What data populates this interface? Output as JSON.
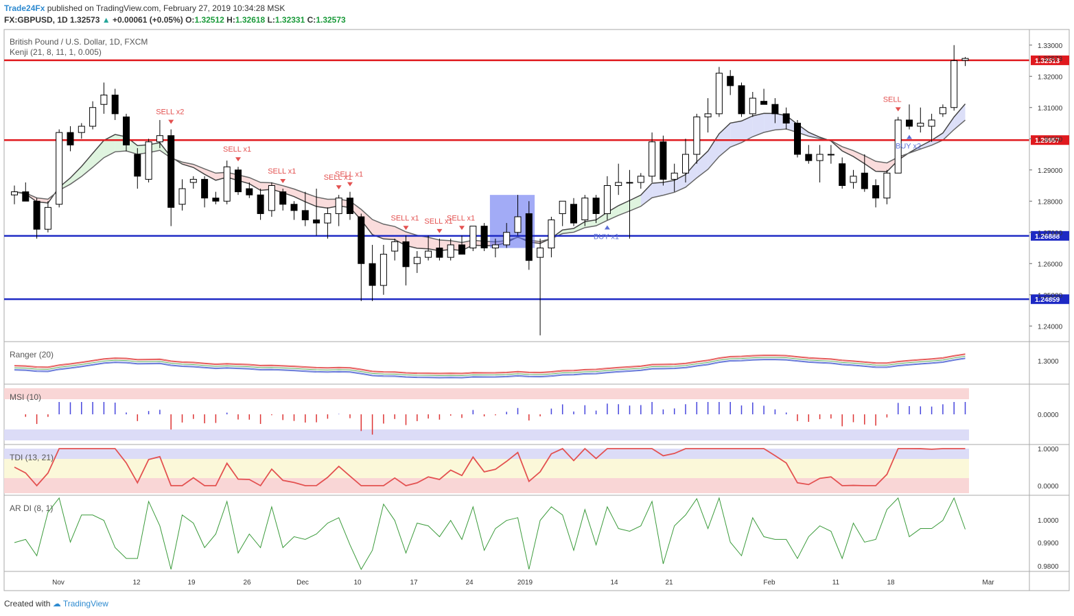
{
  "header": {
    "brand": "Trade24Fx",
    "published": "published on TradingView.com, February 27, 2019 10:34:28 MSK",
    "symbol": "FX:GBPUSD, 1D",
    "last": "1.32573",
    "change": "+0.00061 (+0.05%)",
    "open_label": "O:",
    "open": "1.32512",
    "high_label": "H:",
    "high": "1.32618",
    "low_label": "L:",
    "low": "1.32331",
    "close_label": "C:",
    "close": "1.32573"
  },
  "footer": {
    "created": "Created with",
    "brand": "TradingView"
  },
  "colors": {
    "up": "#ffffff",
    "down": "#000000",
    "resistance": "#e0191e",
    "support": "#1d29c4",
    "sell": "#e35150",
    "buy": "#5c6fd6"
  },
  "chart_data": {
    "type": "candlestick",
    "title": "British Pound / U.S. Dollar, 1D, FXCM",
    "indicator": "Kenji (21, 8, 11, 1, 0.005)",
    "x_ticks": [
      "Nov",
      "12",
      "19",
      "26",
      "Dec",
      "10",
      "17",
      "24",
      "2019",
      "14",
      "21",
      "Feb",
      "11",
      "18",
      "Mar"
    ],
    "y_ticks": [
      "1.33000",
      "1.32000",
      "1.31000",
      "1.30000",
      "1.29000",
      "1.28000",
      "1.27000",
      "1.26000",
      "1.25000",
      "1.24000"
    ],
    "ylim": [
      1.235,
      1.335
    ],
    "last_price_label": "1.32573",
    "ohlc": [
      {
        "o": 1.282,
        "h": 1.285,
        "l": 1.279,
        "c": 1.283
      },
      {
        "o": 1.283,
        "h": 1.286,
        "l": 1.281,
        "c": 1.28
      },
      {
        "o": 1.28,
        "h": 1.281,
        "l": 1.268,
        "c": 1.271
      },
      {
        "o": 1.271,
        "h": 1.28,
        "l": 1.27,
        "c": 1.278
      },
      {
        "o": 1.279,
        "h": 1.303,
        "l": 1.278,
        "c": 1.302
      },
      {
        "o": 1.302,
        "h": 1.304,
        "l": 1.296,
        "c": 1.298
      },
      {
        "o": 1.302,
        "h": 1.305,
        "l": 1.3,
        "c": 1.304
      },
      {
        "o": 1.304,
        "h": 1.312,
        "l": 1.303,
        "c": 1.31
      },
      {
        "o": 1.311,
        "h": 1.318,
        "l": 1.308,
        "c": 1.314
      },
      {
        "o": 1.314,
        "h": 1.316,
        "l": 1.306,
        "c": 1.308
      },
      {
        "o": 1.307,
        "h": 1.308,
        "l": 1.296,
        "c": 1.298
      },
      {
        "o": 1.295,
        "h": 1.297,
        "l": 1.284,
        "c": 1.288
      },
      {
        "o": 1.287,
        "h": 1.3,
        "l": 1.286,
        "c": 1.299
      },
      {
        "o": 1.299,
        "h": 1.306,
        "l": 1.297,
        "c": 1.301
      },
      {
        "o": 1.301,
        "h": 1.303,
        "l": 1.272,
        "c": 1.278
      },
      {
        "o": 1.279,
        "h": 1.287,
        "l": 1.277,
        "c": 1.284
      },
      {
        "o": 1.286,
        "h": 1.288,
        "l": 1.284,
        "c": 1.287
      },
      {
        "o": 1.287,
        "h": 1.288,
        "l": 1.278,
        "c": 1.281
      },
      {
        "o": 1.281,
        "h": 1.283,
        "l": 1.279,
        "c": 1.28
      },
      {
        "o": 1.28,
        "h": 1.293,
        "l": 1.279,
        "c": 1.291
      },
      {
        "o": 1.29,
        "h": 1.291,
        "l": 1.282,
        "c": 1.283
      },
      {
        "o": 1.284,
        "h": 1.286,
        "l": 1.281,
        "c": 1.282
      },
      {
        "o": 1.282,
        "h": 1.284,
        "l": 1.274,
        "c": 1.276
      },
      {
        "o": 1.277,
        "h": 1.286,
        "l": 1.275,
        "c": 1.285
      },
      {
        "o": 1.283,
        "h": 1.284,
        "l": 1.277,
        "c": 1.279
      },
      {
        "o": 1.279,
        "h": 1.28,
        "l": 1.274,
        "c": 1.277
      },
      {
        "o": 1.277,
        "h": 1.283,
        "l": 1.272,
        "c": 1.274
      },
      {
        "o": 1.274,
        "h": 1.284,
        "l": 1.269,
        "c": 1.273
      },
      {
        "o": 1.273,
        "h": 1.278,
        "l": 1.268,
        "c": 1.276
      },
      {
        "o": 1.276,
        "h": 1.282,
        "l": 1.272,
        "c": 1.281
      },
      {
        "o": 1.281,
        "h": 1.283,
        "l": 1.274,
        "c": 1.276
      },
      {
        "o": 1.275,
        "h": 1.276,
        "l": 1.248,
        "c": 1.26
      },
      {
        "o": 1.26,
        "h": 1.266,
        "l": 1.248,
        "c": 1.253
      },
      {
        "o": 1.253,
        "h": 1.266,
        "l": 1.25,
        "c": 1.263
      },
      {
        "o": 1.264,
        "h": 1.268,
        "l": 1.261,
        "c": 1.267
      },
      {
        "o": 1.267,
        "h": 1.269,
        "l": 1.253,
        "c": 1.259
      },
      {
        "o": 1.26,
        "h": 1.264,
        "l": 1.257,
        "c": 1.262
      },
      {
        "o": 1.262,
        "h": 1.269,
        "l": 1.261,
        "c": 1.264
      },
      {
        "o": 1.265,
        "h": 1.268,
        "l": 1.261,
        "c": 1.262
      },
      {
        "o": 1.262,
        "h": 1.268,
        "l": 1.261,
        "c": 1.266
      },
      {
        "o": 1.266,
        "h": 1.269,
        "l": 1.263,
        "c": 1.263
      },
      {
        "o": 1.265,
        "h": 1.272,
        "l": 1.264,
        "c": 1.272
      },
      {
        "o": 1.272,
        "h": 1.273,
        "l": 1.264,
        "c": 1.265
      },
      {
        "o": 1.265,
        "h": 1.268,
        "l": 1.262,
        "c": 1.266
      },
      {
        "o": 1.266,
        "h": 1.273,
        "l": 1.265,
        "c": 1.27
      },
      {
        "o": 1.27,
        "h": 1.282,
        "l": 1.269,
        "c": 1.275
      },
      {
        "o": 1.276,
        "h": 1.28,
        "l": 1.258,
        "c": 1.261
      },
      {
        "o": 1.262,
        "h": 1.268,
        "l": 1.237,
        "c": 1.265
      },
      {
        "o": 1.265,
        "h": 1.275,
        "l": 1.262,
        "c": 1.274
      },
      {
        "o": 1.276,
        "h": 1.28,
        "l": 1.272,
        "c": 1.28
      },
      {
        "o": 1.279,
        "h": 1.281,
        "l": 1.272,
        "c": 1.273
      },
      {
        "o": 1.274,
        "h": 1.282,
        "l": 1.272,
        "c": 1.281
      },
      {
        "o": 1.281,
        "h": 1.282,
        "l": 1.273,
        "c": 1.276
      },
      {
        "o": 1.276,
        "h": 1.288,
        "l": 1.274,
        "c": 1.285
      },
      {
        "o": 1.285,
        "h": 1.292,
        "l": 1.282,
        "c": 1.286
      },
      {
        "o": 1.286,
        "h": 1.29,
        "l": 1.268,
        "c": 1.286
      },
      {
        "o": 1.286,
        "h": 1.289,
        "l": 1.284,
        "c": 1.288
      },
      {
        "o": 1.288,
        "h": 1.302,
        "l": 1.286,
        "c": 1.299
      },
      {
        "o": 1.299,
        "h": 1.301,
        "l": 1.285,
        "c": 1.287
      },
      {
        "o": 1.287,
        "h": 1.292,
        "l": 1.283,
        "c": 1.289
      },
      {
        "o": 1.289,
        "h": 1.3,
        "l": 1.286,
        "c": 1.295
      },
      {
        "o": 1.295,
        "h": 1.308,
        "l": 1.292,
        "c": 1.307
      },
      {
        "o": 1.307,
        "h": 1.313,
        "l": 1.302,
        "c": 1.308
      },
      {
        "o": 1.308,
        "h": 1.323,
        "l": 1.307,
        "c": 1.321
      },
      {
        "o": 1.32,
        "h": 1.322,
        "l": 1.314,
        "c": 1.317
      },
      {
        "o": 1.317,
        "h": 1.318,
        "l": 1.307,
        "c": 1.308
      },
      {
        "o": 1.308,
        "h": 1.315,
        "l": 1.307,
        "c": 1.313
      },
      {
        "o": 1.312,
        "h": 1.316,
        "l": 1.311,
        "c": 1.311
      },
      {
        "o": 1.311,
        "h": 1.313,
        "l": 1.305,
        "c": 1.308
      },
      {
        "o": 1.308,
        "h": 1.31,
        "l": 1.303,
        "c": 1.305
      },
      {
        "o": 1.305,
        "h": 1.306,
        "l": 1.294,
        "c": 1.295
      },
      {
        "o": 1.295,
        "h": 1.298,
        "l": 1.292,
        "c": 1.293
      },
      {
        "o": 1.293,
        "h": 1.298,
        "l": 1.286,
        "c": 1.295
      },
      {
        "o": 1.295,
        "h": 1.298,
        "l": 1.292,
        "c": 1.295
      },
      {
        "o": 1.292,
        "h": 1.294,
        "l": 1.284,
        "c": 1.285
      },
      {
        "o": 1.286,
        "h": 1.29,
        "l": 1.284,
        "c": 1.288
      },
      {
        "o": 1.289,
        "h": 1.295,
        "l": 1.283,
        "c": 1.284
      },
      {
        "o": 1.285,
        "h": 1.287,
        "l": 1.278,
        "c": 1.281
      },
      {
        "o": 1.281,
        "h": 1.29,
        "l": 1.279,
        "c": 1.289
      },
      {
        "o": 1.289,
        "h": 1.307,
        "l": 1.289,
        "c": 1.306
      },
      {
        "o": 1.306,
        "h": 1.311,
        "l": 1.303,
        "c": 1.304
      },
      {
        "o": 1.304,
        "h": 1.31,
        "l": 1.302,
        "c": 1.305
      },
      {
        "o": 1.304,
        "h": 1.308,
        "l": 1.299,
        "c": 1.306
      },
      {
        "o": 1.308,
        "h": 1.311,
        "l": 1.307,
        "c": 1.31
      },
      {
        "o": 1.31,
        "h": 1.33,
        "l": 1.309,
        "c": 1.325
      },
      {
        "o": 1.32512,
        "h": 1.32618,
        "l": 1.32331,
        "c": 1.32573
      }
    ],
    "horizontal_levels": [
      {
        "value": 1.32513,
        "label": "1.32513",
        "color": "#e0191e"
      },
      {
        "value": 1.29957,
        "label": "1.29957",
        "color": "#e0191e"
      },
      {
        "value": 1.26888,
        "label": "1.26888",
        "color": "#1d29c4"
      },
      {
        "value": 1.24859,
        "label": "1.24859",
        "color": "#1d29c4"
      }
    ],
    "signals": [
      {
        "i": 14,
        "text": "SELL x2",
        "kind": "sell"
      },
      {
        "i": 20,
        "text": "SELL x1",
        "kind": "sell"
      },
      {
        "i": 24,
        "text": "SELL x1",
        "kind": "sell"
      },
      {
        "i": 29,
        "text": "SELL x1",
        "kind": "sell"
      },
      {
        "i": 30,
        "text": "SELL x1",
        "kind": "sell"
      },
      {
        "i": 35,
        "text": "SELL x1",
        "kind": "sell"
      },
      {
        "i": 38,
        "text": "SELL x1",
        "kind": "sell"
      },
      {
        "i": 40,
        "text": "SELL x1",
        "kind": "sell"
      },
      {
        "i": 53,
        "text": "BUY x1",
        "kind": "buy"
      },
      {
        "i": 79,
        "text": "SELL",
        "kind": "sell"
      },
      {
        "i": 80,
        "text": "BUY x2",
        "kind": "buy"
      }
    ],
    "sub_panels": [
      {
        "name": "Ranger (20)",
        "ticks": [
          "1.3000"
        ]
      },
      {
        "name": "MSI (10)",
        "ticks": [
          "0.0000"
        ]
      },
      {
        "name": "TDI (13, 21)",
        "ticks": [
          "1.0000",
          "0.0000"
        ]
      },
      {
        "name": "AR DI (8, 1)",
        "ticks": [
          "1.0000",
          "0.9900",
          "0.9800"
        ]
      }
    ]
  }
}
